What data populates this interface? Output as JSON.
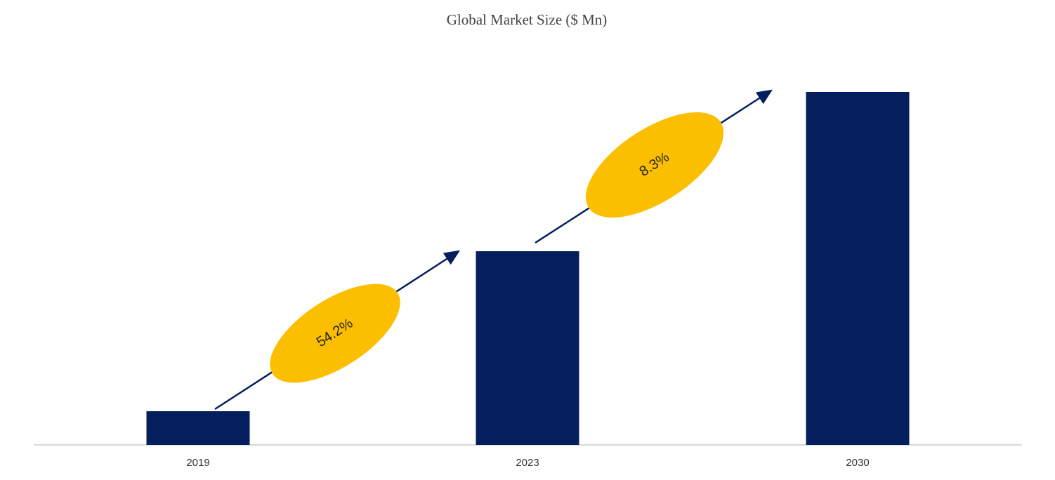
{
  "chart_data": {
    "type": "bar",
    "title": "Global Market Size ($ Mn)",
    "categories": [
      "2019",
      "2023",
      "2030"
    ],
    "values": [
      48,
      276,
      503
    ],
    "color": "#041e5e",
    "growth_labels": [
      "54.2%",
      "8.3%"
    ],
    "growth_color": "#fbbf00"
  }
}
